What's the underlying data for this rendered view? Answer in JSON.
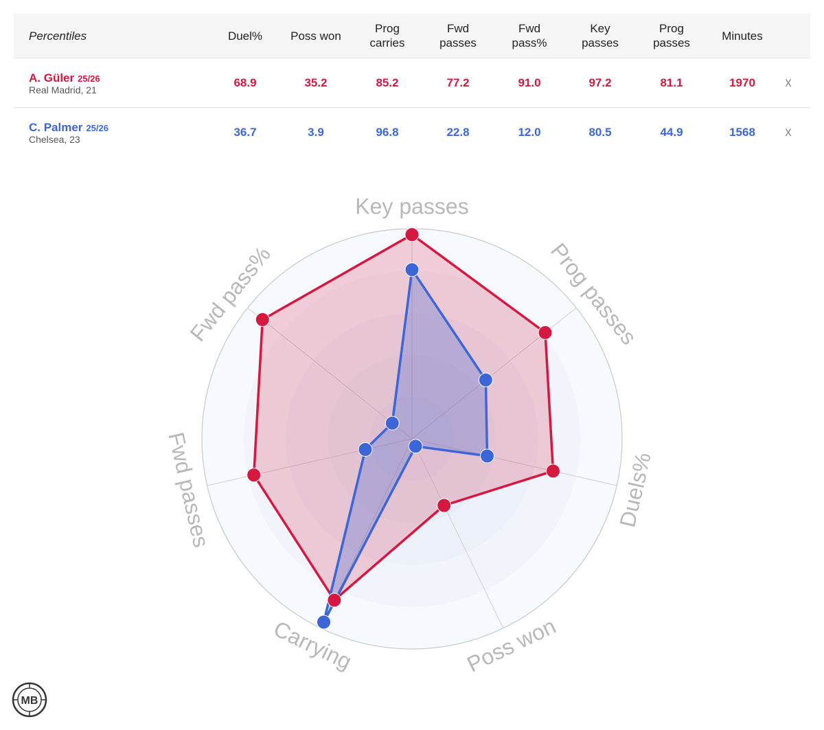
{
  "table": {
    "header_label": "Percentiles",
    "columns": [
      "Duel%",
      "Poss won",
      "Prog\ncarries",
      "Fwd\npasses",
      "Fwd\npass%",
      "Key\npasses",
      "Prog\npasses",
      "Minutes"
    ],
    "remove_label": "x"
  },
  "players": [
    {
      "name": "A. Güler",
      "season": "25/26",
      "club": "Real Madrid, 21",
      "color": "#d6173f",
      "values": [
        "68.9",
        "35.2",
        "85.2",
        "77.2",
        "91.0",
        "97.2",
        "81.1",
        "1970"
      ]
    },
    {
      "name": "C. Palmer",
      "season": "25/26",
      "club": "Chelsea, 23",
      "color": "#3c66d8",
      "values": [
        "36.7",
        "3.9",
        "96.8",
        "22.8",
        "12.0",
        "80.5",
        "44.9",
        "1568"
      ]
    }
  ],
  "chart_data": {
    "type": "radar",
    "range": [
      0,
      100
    ],
    "axes": [
      "Key passes",
      "Prog passes",
      "Duels%",
      "Poss won",
      "Carrying",
      "Fwd passes",
      "Fwd pass%"
    ],
    "series": [
      {
        "name": "A. Güler",
        "color": "#d6173f",
        "values": [
          97.2,
          81.1,
          68.9,
          35.2,
          85.2,
          77.2,
          91.0
        ]
      },
      {
        "name": "C. Palmer",
        "color": "#3c66d8",
        "values": [
          80.5,
          44.9,
          36.7,
          3.9,
          96.8,
          22.8,
          12.0
        ]
      }
    ]
  },
  "logo": {
    "text": "MB"
  }
}
